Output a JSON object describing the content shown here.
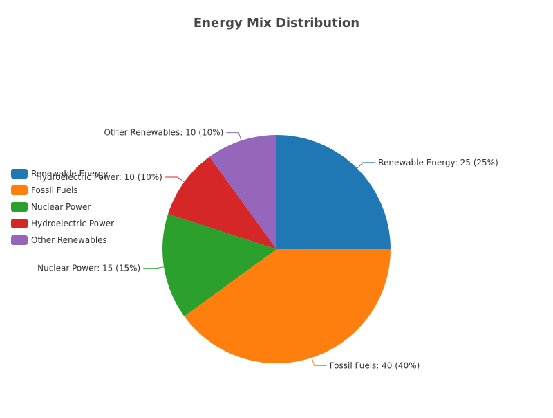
{
  "chart_data": {
    "type": "pie",
    "title": "Energy Mix Distribution",
    "categories": [
      "Renewable Energy",
      "Fossil Fuels",
      "Nuclear Power",
      "Hydroelectric Power",
      "Other Renewables"
    ],
    "values": [
      25,
      40,
      15,
      10,
      10
    ],
    "percents": [
      "25%",
      "40%",
      "15%",
      "10%",
      "10%"
    ],
    "slice_labels": [
      "Renewable Energy: 25 (25%)",
      "Fossil Fuels: 40 (40%)",
      "Nuclear Power: 15 (15%)",
      "Hydroelectric Power: 10 (10%)",
      "Other Renewables: 10 (10%)"
    ],
    "colors": [
      "#1f77b4",
      "#ff7f0e",
      "#2ca02c",
      "#d62728",
      "#9467bd"
    ],
    "legend": {
      "placement": "left",
      "entries": [
        "Renewable Energy",
        "Fossil Fuels",
        "Nuclear Power",
        "Hydroelectric Power",
        "Other Renewables"
      ]
    },
    "start_angle": "12 o'clock",
    "direction": "clockwise"
  }
}
